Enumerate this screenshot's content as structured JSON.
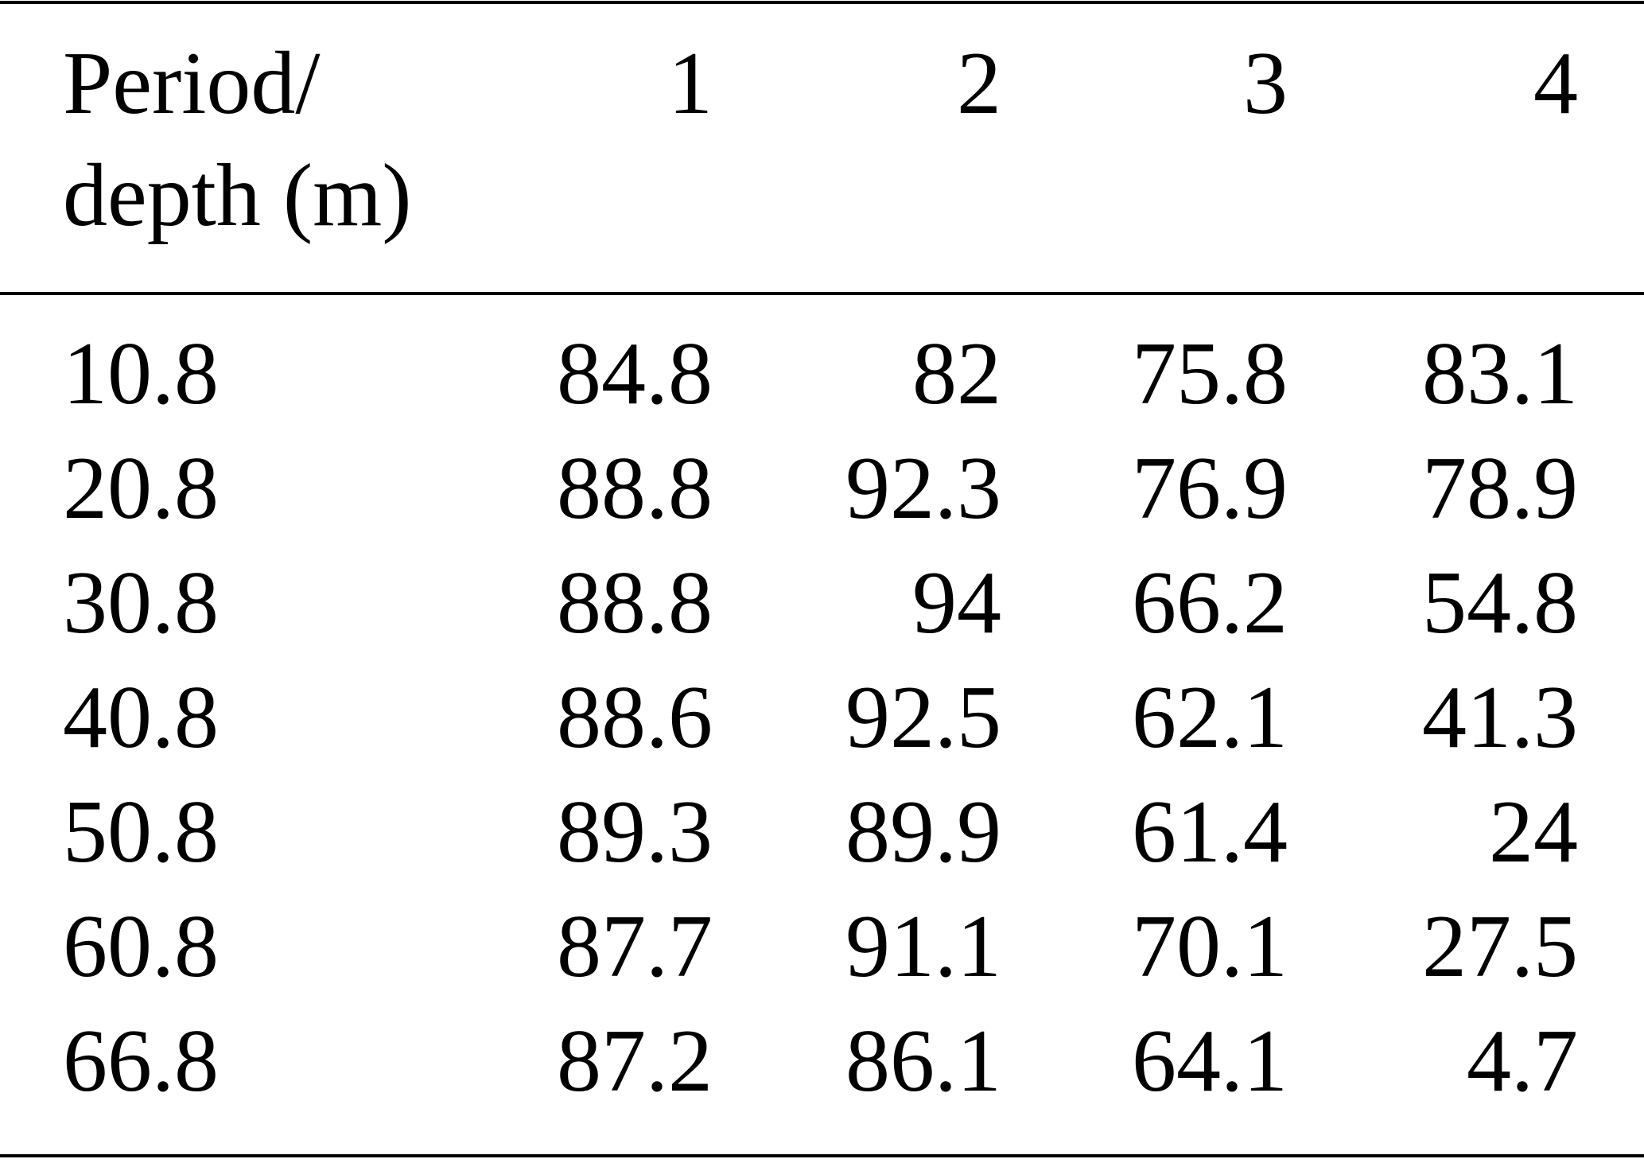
{
  "table": {
    "header": {
      "label": [
        "Period/",
        "depth (m)"
      ],
      "columns": [
        "1",
        "2",
        "3",
        "4"
      ]
    },
    "rows": [
      [
        10.8,
        84.8,
        82,
        75.8,
        83.1
      ],
      [
        20.8,
        88.8,
        92.3,
        76.9,
        78.9
      ],
      [
        30.8,
        88.8,
        94,
        66.2,
        54.8
      ],
      [
        40.8,
        88.6,
        92.5,
        62.1,
        41.3
      ],
      [
        50.8,
        89.3,
        89.9,
        61.4,
        24
      ],
      [
        60.8,
        87.7,
        91.1,
        70.1,
        27.5
      ],
      [
        66.8,
        87.2,
        86.1,
        64.1,
        4.7
      ]
    ]
  }
}
